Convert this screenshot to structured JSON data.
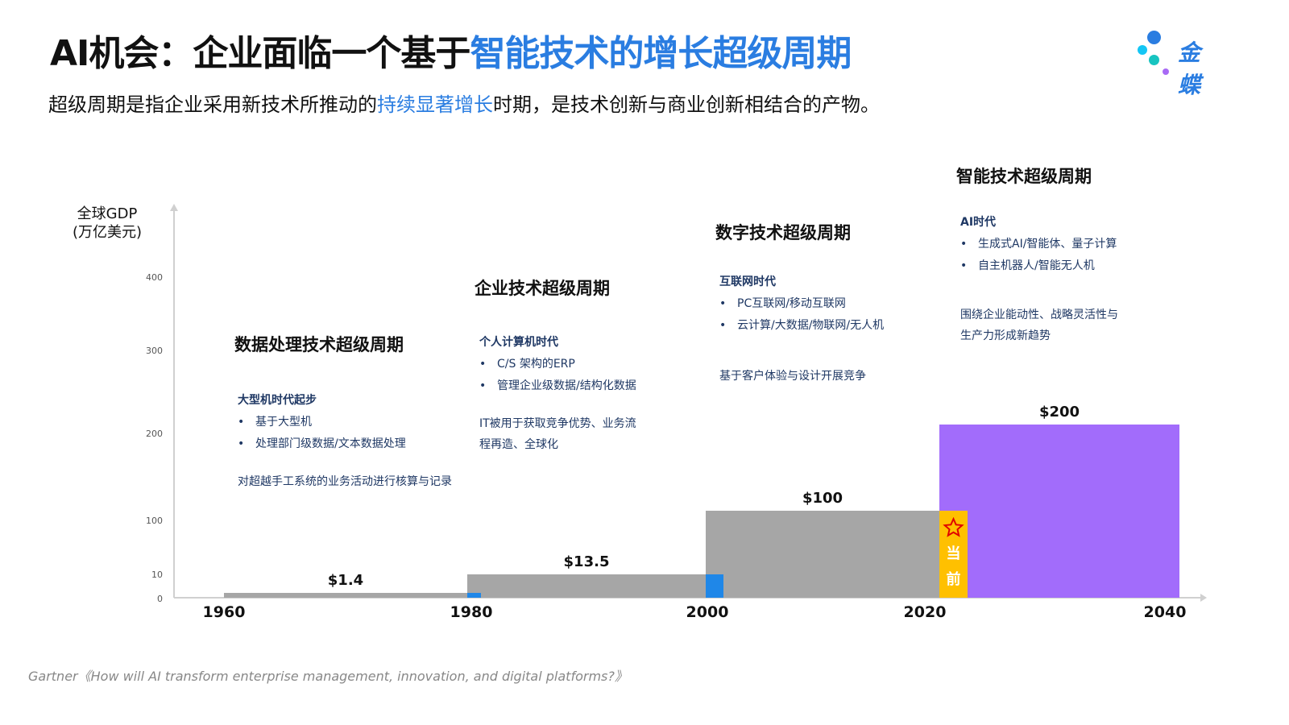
{
  "header": {
    "title_part1": "AI机会：企业面临一个基于",
    "title_part2": "智能技术的增长超级周期",
    "subtitle_part1": "超级周期是指企业采用新技术所推动的",
    "subtitle_part2": "持续显著增长",
    "subtitle_part3": "时期，是技术创新与商业创新相结合的产物。",
    "logo_text": "金蝶"
  },
  "eras": [
    {
      "title": "数据处理技术超级周期",
      "sub": "大型机时代起步",
      "bullets": [
        "基于大型机",
        "处理部门级数据/文本数据处理"
      ],
      "desc": "对超越手工系统的业务活动进行核算与记录"
    },
    {
      "title": "企业技术超级周期",
      "sub": "个人计算机时代",
      "bullets": [
        "C/S 架构的ERP",
        "管理企业级数据/结构化数据"
      ],
      "desc": "IT被用于获取竞争优势、业务流程再造、全球化"
    },
    {
      "title": "数字技术超级周期",
      "sub": "互联网时代",
      "bullets": [
        "PC互联网/移动互联网",
        "云计算/大数据/物联网/无人机"
      ],
      "desc": "基于客户体验与设计开展竞争"
    },
    {
      "title": "智能技术超级周期",
      "sub": "AI时代",
      "bullets": [
        "生成式AI/智能体、量子计算",
        "自主机器人/智能无人机"
      ],
      "desc": "围绕企业能动性、战略灵活性与生产力形成新趋势"
    }
  ],
  "chart_data": {
    "type": "bar",
    "ylabel": "全球GDP\n(万亿美元)",
    "yticks": [
      "0",
      "10",
      "100",
      "200",
      "300",
      "400"
    ],
    "xticks": [
      "1960",
      "1980",
      "2000",
      "2020",
      "2040"
    ],
    "bars": [
      {
        "from": 1960,
        "to": 1980,
        "value": 1.4,
        "label": "$1.4",
        "color": "#a6a6a6"
      },
      {
        "from": 1980,
        "to": 2000,
        "value": 13.5,
        "label": "$13.5",
        "color": "#a6a6a6"
      },
      {
        "from": 2000,
        "to": 2020,
        "value": 100,
        "label": "$100",
        "color": "#a6a6a6"
      },
      {
        "from": 2020,
        "to": 2040,
        "value": 200,
        "label": "$200",
        "color": "#a26cfb"
      }
    ],
    "transitions": [
      1980,
      2000
    ],
    "transition_color": "#1f87e8",
    "current_marker": {
      "year": 2020,
      "label": "当前",
      "color": "#ffc000",
      "icon": "star-icon"
    }
  },
  "footnote": "Gartner《How will AI transform enterprise management, innovation, and digital platforms?》",
  "colors": {
    "accent": "#2a7de1",
    "navy": "#1f3864"
  }
}
